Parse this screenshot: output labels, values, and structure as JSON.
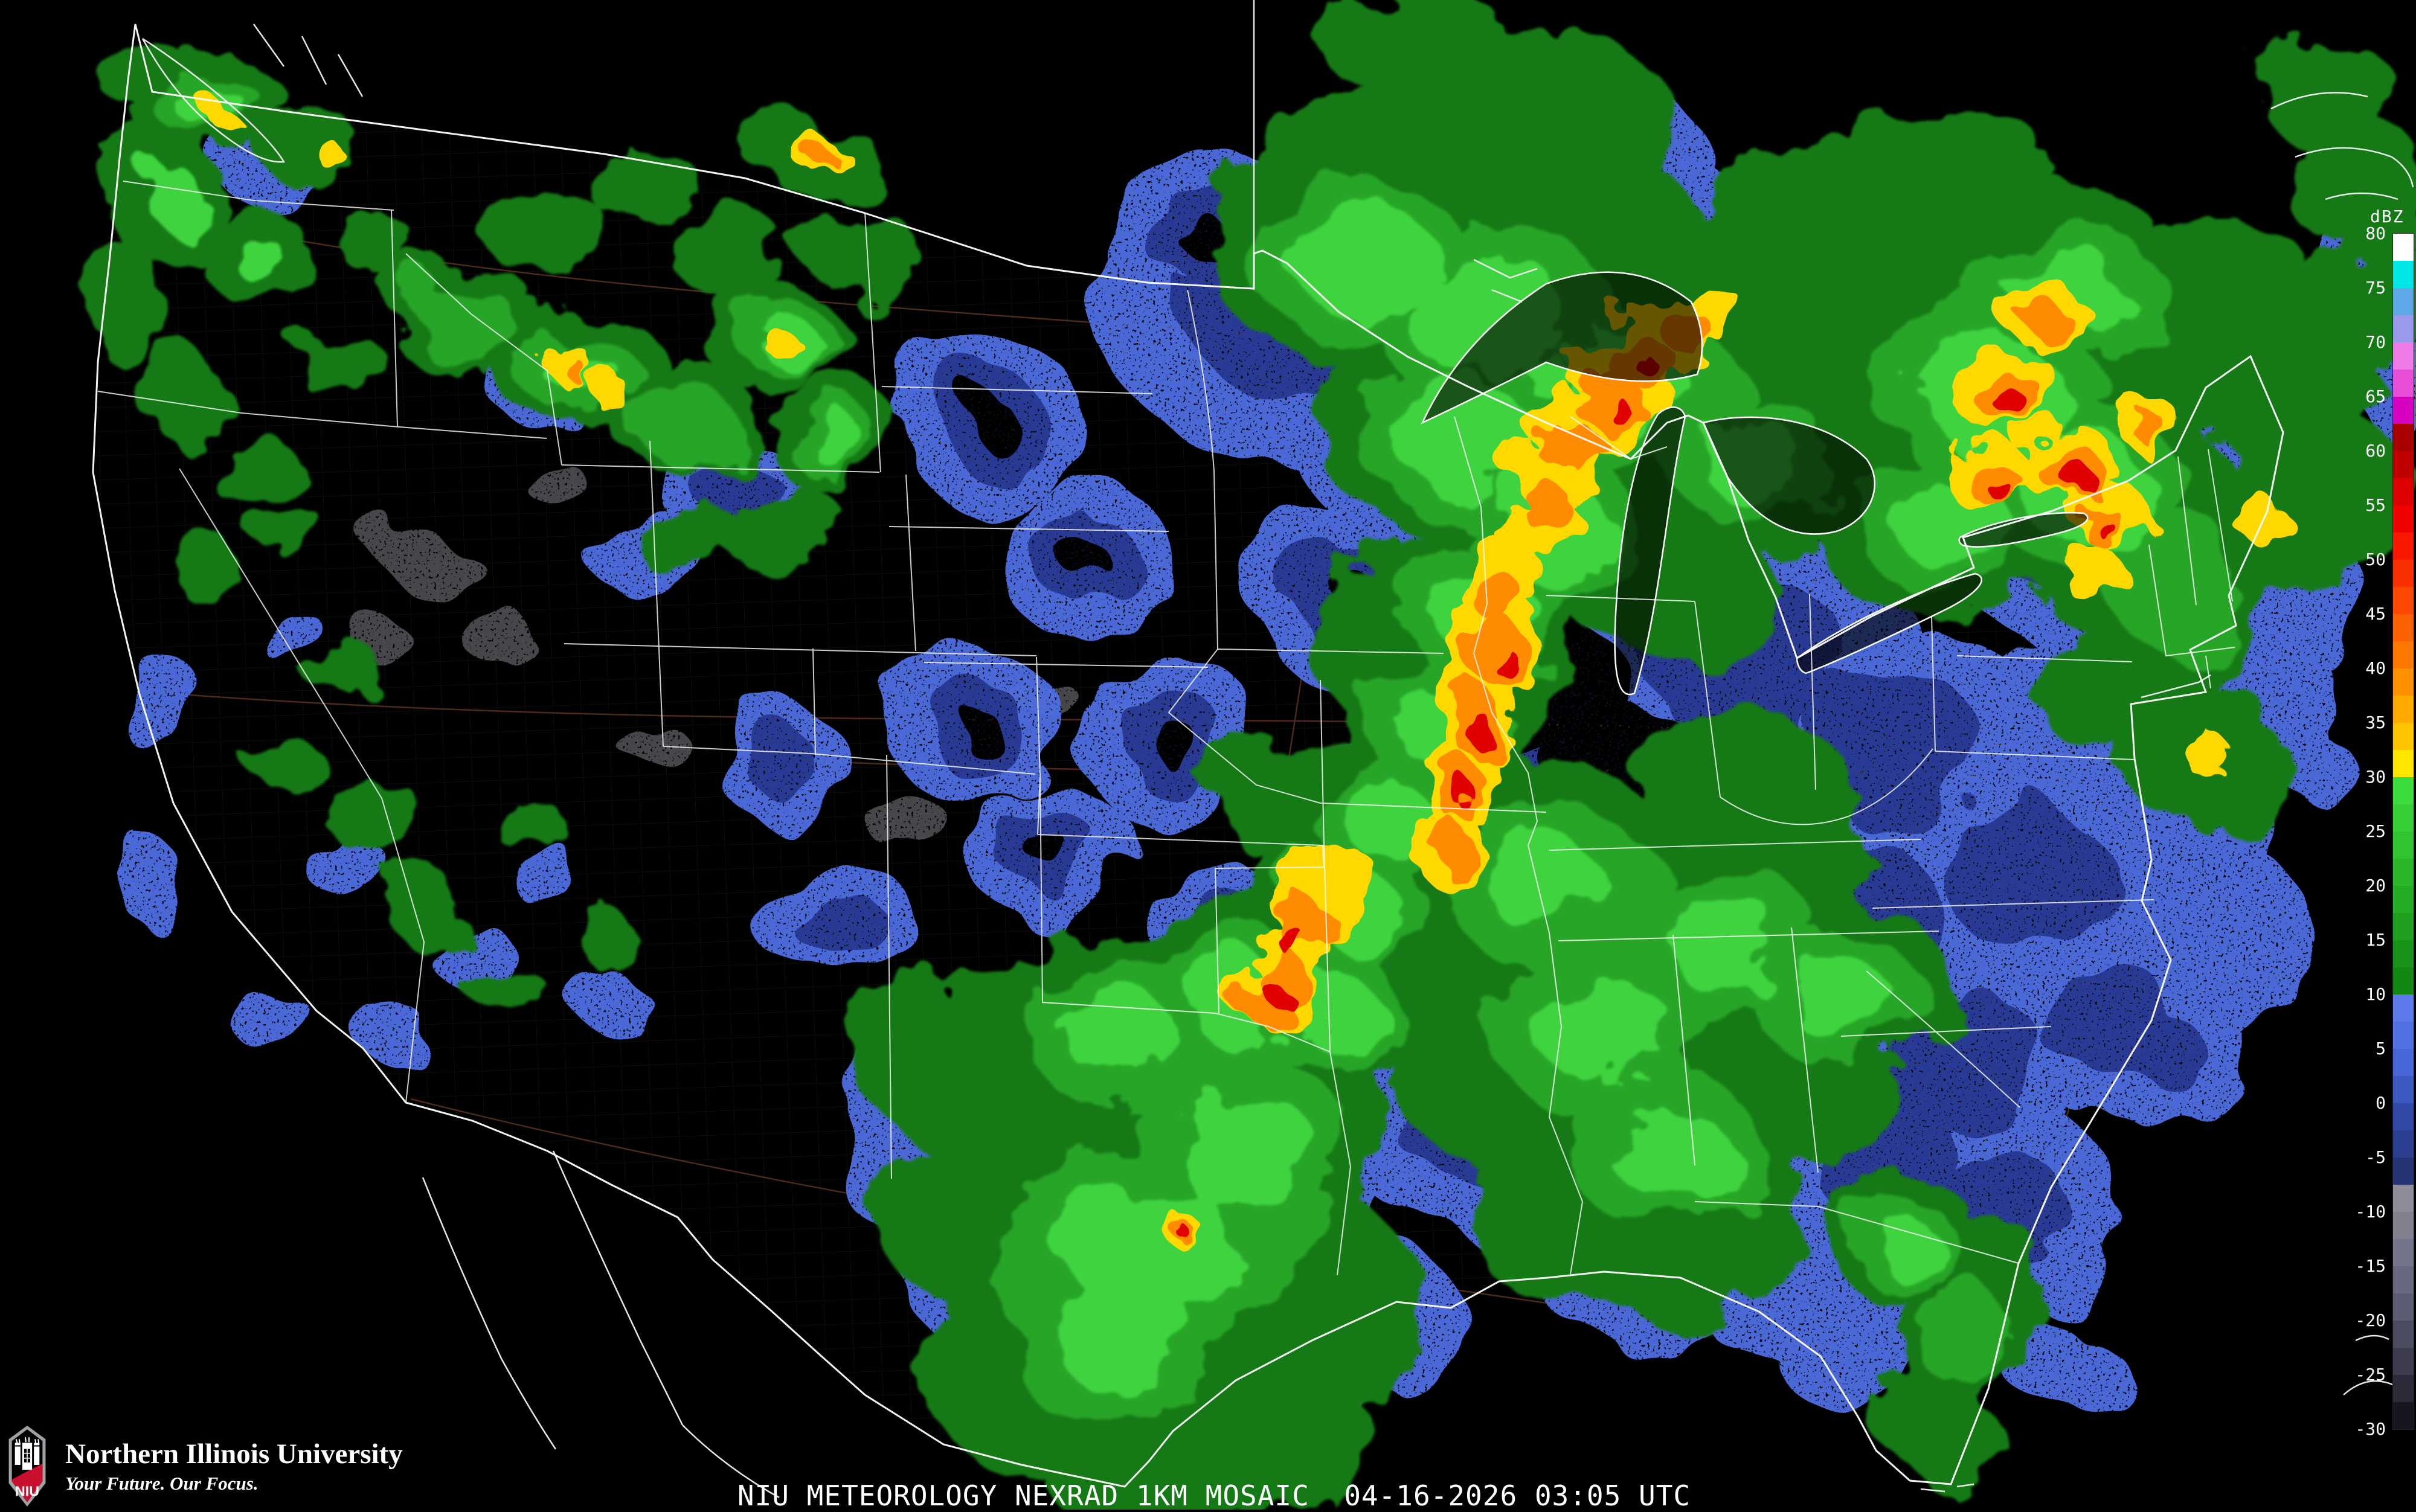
{
  "caption": {
    "text": "NIU METEOROLOGY NEXRAD 1KM MOSAIC  04-16-2026 03:05 UTC"
  },
  "branding": {
    "university_name": "Northern Illinois University",
    "tagline": "Your Future. Our Focus.",
    "logo_acronym": "NIU",
    "logo_red": "#c8102e",
    "logo_silver": "#9ea2a6"
  },
  "colorbar": {
    "unit_label": "dBZ",
    "max_value": 80,
    "min_value": -30,
    "tick_step": 5,
    "tick_labels": [
      "80",
      "75",
      "70",
      "65",
      "60",
      "55",
      "50",
      "45",
      "40",
      "35",
      "30",
      "25",
      "20",
      "15",
      "10",
      "5",
      "0",
      "-5",
      "-10",
      "-15",
      "-20",
      "-25",
      "-30"
    ],
    "segment_colors": [
      "#ffffff",
      "#00e6e6",
      "#5fa8e8",
      "#9a9aec",
      "#ee7ae8",
      "#e84fd8",
      "#d800c0",
      "#a80000",
      "#c00000",
      "#dc0000",
      "#f00000",
      "#f81800",
      "#fa3000",
      "#fc4800",
      "#fd6000",
      "#fe7800",
      "#ff9000",
      "#ffa800",
      "#ffc400",
      "#ffe800",
      "#3cdc3c",
      "#36d036",
      "#30c430",
      "#2ab82a",
      "#24ac24",
      "#1ea01e",
      "#189418",
      "#128812",
      "#5c7ae9",
      "#5071df",
      "#4667d5",
      "#3c59c1",
      "#3248a6",
      "#2c3e90",
      "#263374",
      "#8c8c9b",
      "#80808f",
      "#74748a",
      "#686880",
      "#5c5c74",
      "#4c4c60",
      "#3c3c4e",
      "#2a2a38",
      "#161620"
    ]
  }
}
